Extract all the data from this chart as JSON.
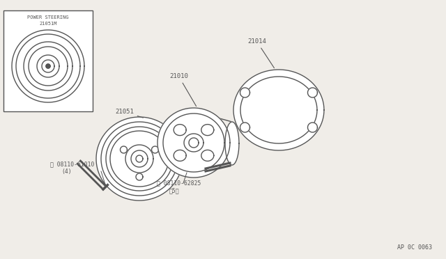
{
  "bg_color": "#f0ede8",
  "line_color": "#555555",
  "footer_text": "AP 0C 0063",
  "lw": 1.0
}
